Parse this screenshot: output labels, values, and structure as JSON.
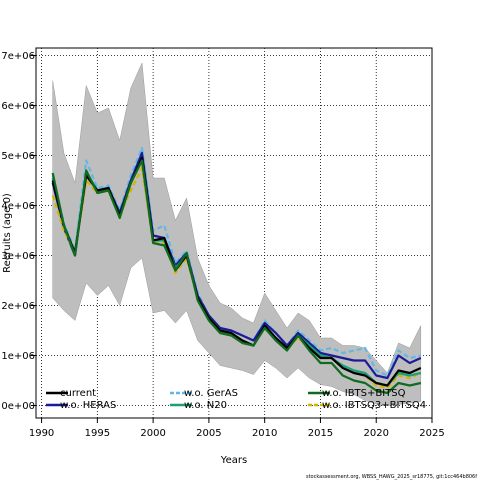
{
  "chart_data": {
    "type": "line",
    "title": "",
    "xlabel": "Years",
    "ylabel": "Recruits (age 0)",
    "xlim": [
      1989.5,
      2025.0
    ],
    "ylim": [
      -250000,
      7150000
    ],
    "x_ticks": [
      1990,
      1995,
      2000,
      2005,
      2010,
      2015,
      2020,
      2025
    ],
    "x_tick_labels": [
      "1990",
      "1995",
      "2000",
      "2005",
      "2010",
      "2015",
      "2020",
      "2025"
    ],
    "y_ticks": [
      0,
      1000000,
      2000000,
      3000000,
      4000000,
      5000000,
      6000000,
      7000000
    ],
    "y_tick_labels": [
      "0e+00",
      "1e+06",
      "2e+06",
      "3e+06",
      "4e+06",
      "5e+06",
      "6e+06",
      "7e+06"
    ],
    "grid": true,
    "legend_position": "bottom",
    "footnote": "stockassessment.org, WBSS_HAWG_2025_sr18775, git:1cc464b806f",
    "x": [
      1991,
      1992,
      1993,
      1994,
      1995,
      1996,
      1997,
      1998,
      1999,
      2000,
      2001,
      2002,
      2003,
      2004,
      2005,
      2006,
      2007,
      2008,
      2009,
      2010,
      2011,
      2012,
      2013,
      2014,
      2015,
      2016,
      2017,
      2018,
      2019,
      2020,
      2021,
      2022,
      2023,
      2024
    ],
    "band": {
      "lower": [
        2150000,
        1900000,
        1700000,
        2450000,
        2200000,
        2400000,
        2000000,
        2750000,
        2950000,
        1850000,
        1900000,
        1650000,
        1900000,
        1300000,
        1050000,
        800000,
        750000,
        700000,
        620000,
        900000,
        750000,
        550000,
        750000,
        550000,
        420000,
        380000,
        280000,
        220000,
        100000,
        30000,
        0,
        20000,
        50000,
        80000
      ],
      "upper": [
        6500000,
        5050000,
        4450000,
        6400000,
        5850000,
        5950000,
        5300000,
        6350000,
        6850000,
        4550000,
        4550000,
        3700000,
        4150000,
        2950000,
        2400000,
        2050000,
        1950000,
        1750000,
        1650000,
        2250000,
        1900000,
        1550000,
        1850000,
        1700000,
        1350000,
        1350000,
        1200000,
        1200000,
        1150000,
        900000,
        650000,
        1250000,
        1150000,
        1600000
      ]
    },
    "series": [
      {
        "name": "current",
        "color": "#000000",
        "dash": "solid",
        "values": [
          4500000,
          3600000,
          3050000,
          4600000,
          4300000,
          4350000,
          3800000,
          4450000,
          4950000,
          3300000,
          3350000,
          2700000,
          3000000,
          2150000,
          1750000,
          1500000,
          1450000,
          1300000,
          1200000,
          1600000,
          1350000,
          1150000,
          1400000,
          1150000,
          950000,
          950000,
          750000,
          650000,
          600000,
          450000,
          400000,
          700000,
          650000,
          750000
        ]
      },
      {
        "name": "w.o. HERAS",
        "color": "#1b1b99",
        "dash": "solid",
        "values": [
          4450000,
          3550000,
          3000000,
          4650000,
          4300000,
          4350000,
          3850000,
          4500000,
          5050000,
          3400000,
          3350000,
          2800000,
          3050000,
          2200000,
          1800000,
          1550000,
          1500000,
          1400000,
          1300000,
          1650000,
          1450000,
          1200000,
          1450000,
          1250000,
          1050000,
          1000000,
          950000,
          900000,
          900000,
          600000,
          550000,
          1000000,
          850000,
          950000
        ]
      },
      {
        "name": "w.o. GerAS",
        "color": "#5fb8e8",
        "dash": "dashed",
        "values": [
          4600000,
          3650000,
          3100000,
          4900000,
          4350000,
          4400000,
          3900000,
          4600000,
          5150000,
          3500000,
          3600000,
          2850000,
          3100000,
          2250000,
          1800000,
          1550000,
          1500000,
          1400000,
          1300000,
          1700000,
          1450000,
          1200000,
          1500000,
          1300000,
          1100000,
          1150000,
          1050000,
          1100000,
          1150000,
          700000,
          600000,
          1100000,
          950000,
          1000000
        ]
      },
      {
        "name": "w.o. N20",
        "color": "#1a9f76",
        "dash": "solid",
        "values": [
          4550000,
          3600000,
          3050000,
          4650000,
          4300000,
          4350000,
          3800000,
          4450000,
          4900000,
          3300000,
          3300000,
          2750000,
          3000000,
          2150000,
          1750000,
          1500000,
          1450000,
          1300000,
          1200000,
          1600000,
          1350000,
          1150000,
          1400000,
          1200000,
          1000000,
          950000,
          800000,
          700000,
          650000,
          450000,
          400000,
          650000,
          600000,
          650000
        ]
      },
      {
        "name": "w.o. IBTS+BITSQ",
        "color": "#106b1e",
        "dash": "solid",
        "values": [
          4650000,
          3600000,
          3000000,
          4700000,
          4250000,
          4300000,
          3750000,
          4450000,
          4900000,
          3250000,
          3200000,
          2700000,
          3050000,
          2100000,
          1700000,
          1450000,
          1400000,
          1250000,
          1200000,
          1550000,
          1300000,
          1100000,
          1400000,
          1100000,
          850000,
          850000,
          600000,
          500000,
          450000,
          300000,
          250000,
          450000,
          400000,
          450000
        ]
      },
      {
        "name": "w.o. IBTSQ3+BITSQ4",
        "color": "#d4b400",
        "dash": "dashed",
        "values": [
          4200000,
          3500000,
          3050000,
          4500000,
          4250000,
          4300000,
          3800000,
          4300000,
          4750000,
          3250000,
          3250000,
          2650000,
          2950000,
          2150000,
          1750000,
          1500000,
          1450000,
          1250000,
          1200000,
          1550000,
          1350000,
          1150000,
          1350000,
          1150000,
          950000,
          950000,
          750000,
          650000,
          600000,
          400000,
          350000,
          600000,
          550000,
          650000
        ]
      }
    ]
  }
}
